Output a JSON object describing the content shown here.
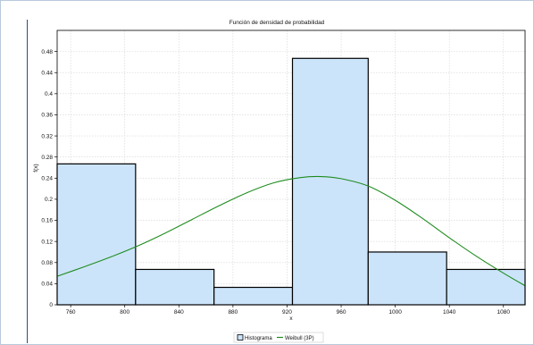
{
  "chart_data": {
    "type": "bar",
    "title": "Función de densidad de probabilidad",
    "xlabel": "x",
    "ylabel": "f(x)",
    "xlim": [
      750,
      1096
    ],
    "ylim": [
      0,
      0.52
    ],
    "x_ticks": [
      760,
      800,
      840,
      880,
      920,
      960,
      1000,
      1040,
      1080
    ],
    "y_ticks": [
      0,
      0.04,
      0.08,
      0.12,
      0.16,
      0.2,
      0.24,
      0.28,
      0.32,
      0.36,
      0.4,
      0.44,
      0.48
    ],
    "y_tick_labels": [
      "0",
      "0.04",
      "0.08",
      "0.12",
      "0.16",
      "0.2",
      "0.24",
      "0.28",
      "0.32",
      "0.36",
      "0.4",
      "0.44",
      "0.48"
    ],
    "grid": true,
    "histogram": {
      "name": "Histograma",
      "color": "#cce4fa",
      "edge_color": "#000000",
      "bins": [
        {
          "x0": 750,
          "x1": 808,
          "value": 0.267
        },
        {
          "x0": 808,
          "x1": 866,
          "value": 0.067
        },
        {
          "x0": 866,
          "x1": 924,
          "value": 0.033
        },
        {
          "x0": 924,
          "x1": 980,
          "value": 0.467
        },
        {
          "x0": 980,
          "x1": 1038,
          "value": 0.1
        },
        {
          "x0": 1038,
          "x1": 1096,
          "value": 0.067
        }
      ]
    },
    "curve": {
      "name": "Weibull (3P)",
      "color": "#1e8c1e",
      "x": [
        750,
        770,
        790,
        810,
        830,
        850,
        870,
        890,
        910,
        930,
        945,
        960,
        980,
        1000,
        1020,
        1040,
        1060,
        1080,
        1096
      ],
      "y": [
        0.054,
        0.072,
        0.091,
        0.112,
        0.136,
        0.162,
        0.188,
        0.212,
        0.231,
        0.241,
        0.243,
        0.239,
        0.225,
        0.198,
        0.164,
        0.127,
        0.092,
        0.06,
        0.036
      ]
    },
    "legend": {
      "position": "bottom-center",
      "entries": [
        "Histograma",
        "Weibull (3P)"
      ]
    }
  }
}
